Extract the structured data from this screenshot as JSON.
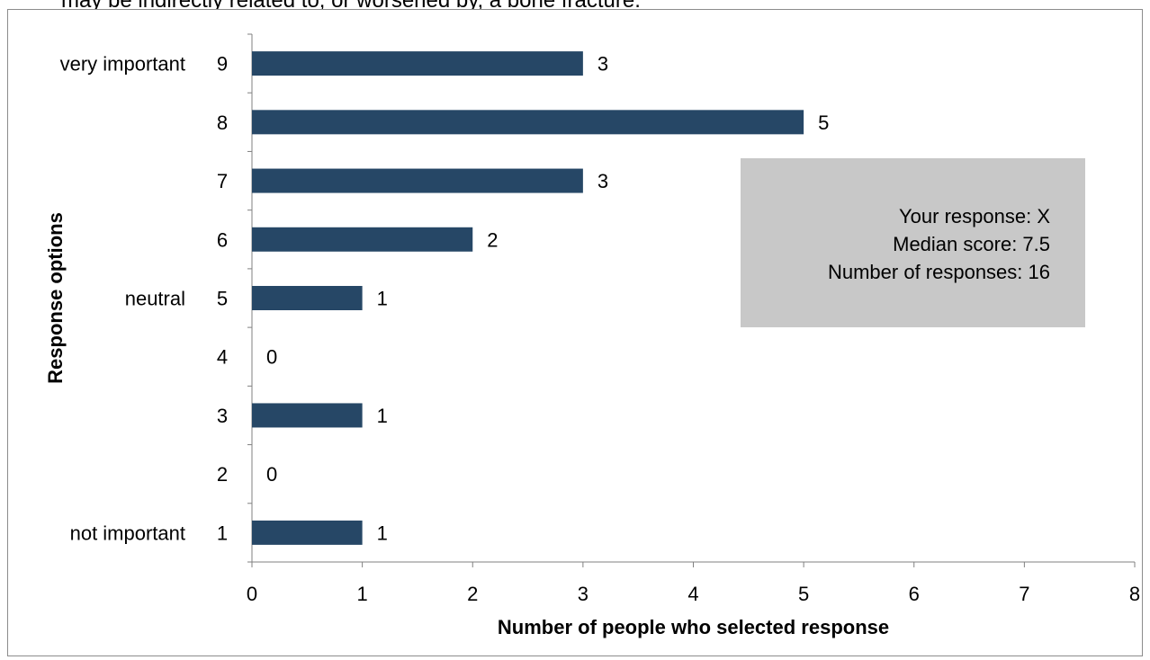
{
  "header_text": "may be indirectly related to, or worsened by, a bone fracture.",
  "chart_data": {
    "type": "bar",
    "orientation": "horizontal",
    "title": "",
    "xlabel": "Number of people who selected response",
    "ylabel": "Response options",
    "xlim": [
      0,
      8
    ],
    "x_ticks": [
      "0",
      "1",
      "2",
      "3",
      "4",
      "5",
      "6",
      "7",
      "8"
    ],
    "categories": [
      "9",
      "8",
      "7",
      "6",
      "5",
      "4",
      "3",
      "2",
      "1"
    ],
    "values": [
      3,
      5,
      3,
      2,
      1,
      0,
      1,
      0,
      1
    ],
    "data_labels": [
      "3",
      "5",
      "3",
      "2",
      "1",
      "0",
      "1",
      "0",
      "1"
    ],
    "category_descriptors": [
      {
        "category": "9",
        "text": "very important"
      },
      {
        "category": "5",
        "text": "neutral"
      },
      {
        "category": "1",
        "text": "not important"
      }
    ],
    "bar_color": "#264766",
    "axis_color": "#808080",
    "grid": false,
    "legend": "none",
    "info_box": {
      "lines": [
        "Your response:  X",
        "Median score:  7.5",
        "Number of responses: 16"
      ],
      "background": "#c8c8c8"
    }
  }
}
